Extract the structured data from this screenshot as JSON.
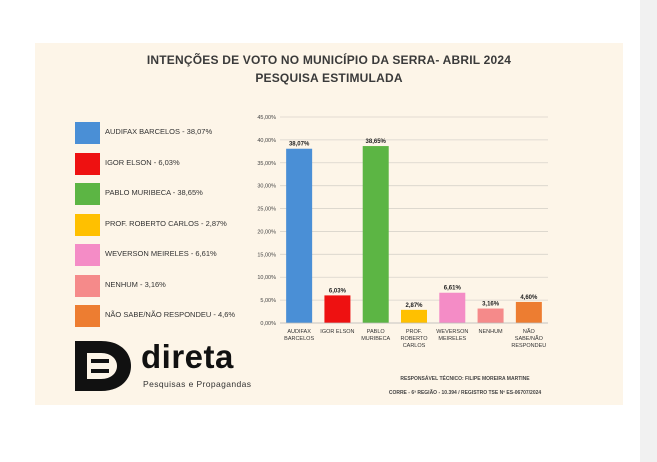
{
  "chart_data": {
    "type": "bar",
    "title": "INTENÇÕES DE VOTO NO MUNICÍPIO DA SERRA- ABRIL 2024",
    "subtitle": "PESQUISA ESTIMULADA",
    "categories": [
      [
        "AUDIFAX",
        "BARCELOS"
      ],
      [
        "IGOR ELSON"
      ],
      [
        "PABLO",
        "MURIBECA"
      ],
      [
        "PROF.",
        "ROBERTO",
        "CARLOS"
      ],
      [
        "WEVERSON",
        "MEIRELES"
      ],
      [
        "NENHUM"
      ],
      [
        "NÃO",
        "SABE/NÃO",
        "RESPONDEU"
      ]
    ],
    "values": [
      38.07,
      6.03,
      38.65,
      2.87,
      6.61,
      3.16,
      4.6
    ],
    "value_labels": [
      "38,07%",
      "6,03%",
      "38,65%",
      "2,87%",
      "6,61%",
      "3,16%",
      "4,60%"
    ],
    "colors": [
      "#4a8fd6",
      "#ee1111",
      "#5cb544",
      "#ffc000",
      "#f48cc6",
      "#f58a8a",
      "#ed7d31"
    ],
    "ylim": [
      0,
      45
    ],
    "yticks": [
      "0,00%",
      "5,00%",
      "10,00%",
      "15,00%",
      "20,00%",
      "25,00%",
      "30,00%",
      "35,00%",
      "40,00%",
      "45,00%"
    ],
    "legend": [
      {
        "label": "AUDIFAX BARCELOS - 38,07%",
        "color": "#4a8fd6"
      },
      {
        "label": "IGOR ELSON - 6,03%",
        "color": "#ee1111"
      },
      {
        "label": "PABLO MURIBECA - 38,65%",
        "color": "#5cb544"
      },
      {
        "label": "PROF. ROBERTO CARLOS - 2,87%",
        "color": "#ffc000"
      },
      {
        "label": "WEVERSON MEIRELES - 6,61%",
        "color": "#f48cc6"
      },
      {
        "label": "NENHUM - 3,16%",
        "color": "#f58a8a"
      },
      {
        "label": "NÃO SABE/NÃO RESPONDEU - 4,6%",
        "color": "#ed7d31"
      }
    ],
    "grid": true,
    "legend_position": "left"
  },
  "logo": {
    "name": "direta",
    "tagline": "Pesquisas e Propagandas"
  },
  "footer": {
    "line1": "RESPONSÁVEL TÉCNICO: FILIPE MOREIRA MARTINE",
    "line2": "CORRE - 6ª REGIÃO - 10.394 / REGISTRO TSE Nº ES-06707/2024"
  }
}
